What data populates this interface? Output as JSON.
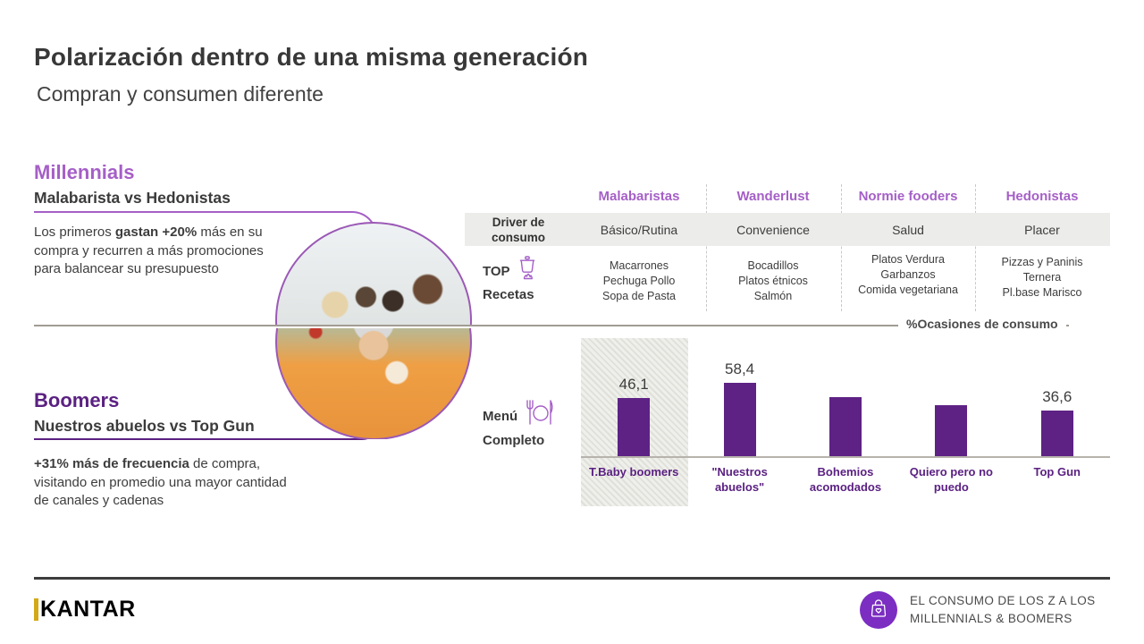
{
  "slide": {
    "title": "Polarización dentro de una misma generación",
    "subtitle": "Compran y consumen diferente"
  },
  "millennials": {
    "heading": "Millennials",
    "subheading": "Malabarista vs Hedonistas",
    "body": {
      "prefix": "Los primeros ",
      "bold": "gastan +20%",
      "suffix": " más en su compra y recurren a más promociones para balancear su presupuesto"
    },
    "accent_color": "#A55FC7"
  },
  "boomers": {
    "heading": "Boomers",
    "subheading": "Nuestros abuelos vs Top Gun",
    "body": {
      "prefix": "",
      "bold": "+31% más de frecuencia",
      "suffix": " de compra, visitando en promedio una mayor cantidad de canales y cadenas"
    },
    "accent_color": "#5B2182"
  },
  "segment_table": {
    "columns": [
      "Malabaristas",
      "Wanderlust",
      "Normie fooders",
      "Hedonistas"
    ],
    "driver_row": {
      "label": "Driver de consumo",
      "values": [
        "Básico/Rutina",
        "Convenience",
        "Salud",
        "Placer"
      ]
    },
    "recipes_row": {
      "label_line1": "TOP",
      "label_line2": "Recetas",
      "icon": "cooking-pot-icon",
      "values": [
        "Macarrones\nPechuga Pollo\nSopa de Pasta",
        "Bocadillos\nPlatos étnicos\nSalmón",
        "Platos Verdura\nGarbanzos\nComida vegetariana",
        "Pizzas y Paninis\nTernera\nPl.base Marisco"
      ]
    }
  },
  "chart_data": {
    "type": "bar",
    "axis_label": "%Ocasiones de consumo",
    "series_label_line1": "Menú",
    "series_label_line2": "Completo",
    "series_icon": "cutlery-plate-icon",
    "categories": [
      "T.Baby boomers",
      "\"Nuestros abuelos\"",
      "Bohemios acomodados",
      "Quiero pero no puedo",
      "Top Gun"
    ],
    "values": [
      46.1,
      58.4,
      47,
      41,
      36.6
    ],
    "value_labels": [
      "46,1",
      "58,4",
      "",
      "",
      "36,6"
    ],
    "highlighted_category_index": 0,
    "bar_color": "#5E2285",
    "category_label_color": "#5B2182",
    "ylim": [
      0,
      65
    ],
    "grid": false,
    "legend": false
  },
  "footer": {
    "logo_text": "KANTAR",
    "badge_icon": "shopping-bag-heart-icon",
    "badge_color": "#7B2EC1",
    "report_line1": "EL CONSUMO DE LOS Z A LOS",
    "report_line2": "MILLENNIALS & BOOMERS"
  }
}
